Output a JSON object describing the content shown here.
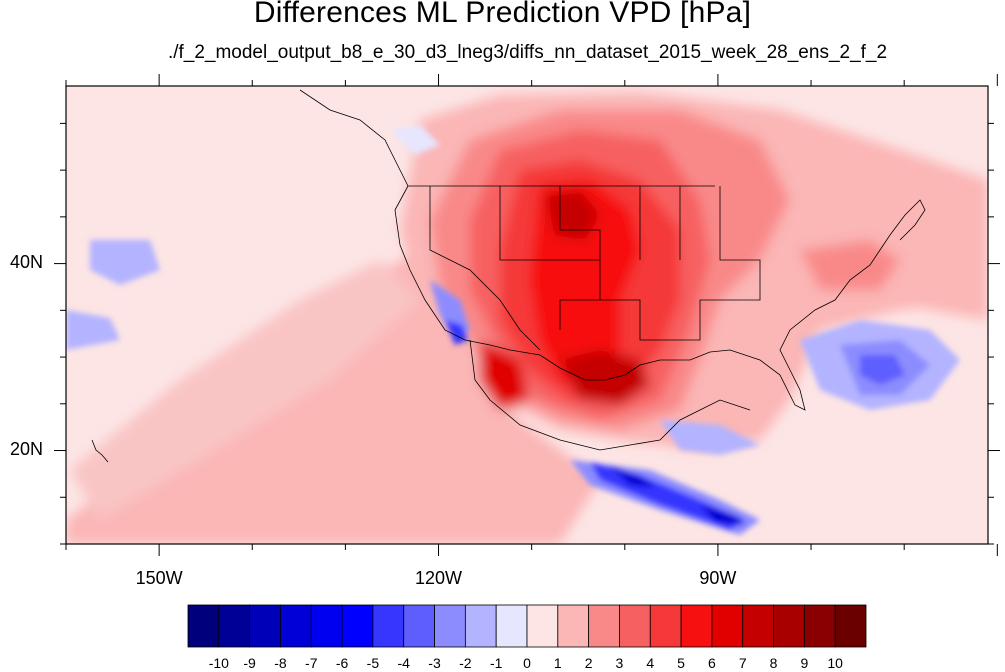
{
  "title": "Differences ML Prediction VPD [hPa]",
  "subtitle": "./f_2_model_output_b8_e_30_d3_lneg3/diffs_nn_dataset_2015_week_28_ens_2_f_2",
  "map": {
    "lon_ticks": [
      {
        "label": "150W",
        "lon": -150
      },
      {
        "label": "120W",
        "lon": -120
      },
      {
        "label": "90W",
        "lon": -90
      }
    ],
    "lat_ticks": [
      {
        "label": "40N",
        "lat": 40
      },
      {
        "label": "20N",
        "lat": 20
      }
    ]
  },
  "colorbar": {
    "labels": [
      "-10",
      "-9",
      "-8",
      "-7",
      "-6",
      "-5",
      "-4",
      "-3",
      "-2",
      "-1",
      "0",
      "1",
      "2",
      "3",
      "4",
      "5",
      "6",
      "7",
      "8",
      "9",
      "10"
    ],
    "colors": [
      "#00007c",
      "#000096",
      "#0000b8",
      "#0000d7",
      "#0000f0",
      "#0000ff",
      "#3636ff",
      "#5e5eff",
      "#8c8cff",
      "#b3b3ff",
      "#e6e6ff",
      "#fde5e5",
      "#fbb6b6",
      "#f98989",
      "#f76060",
      "#f53838",
      "#f71010",
      "#e00000",
      "#c40000",
      "#a80000",
      "#8a0000",
      "#6a0000"
    ]
  }
}
